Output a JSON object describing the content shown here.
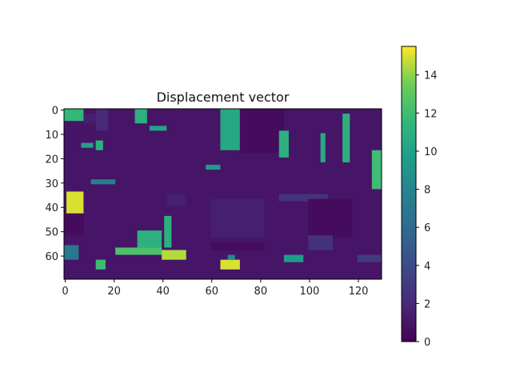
{
  "chart_data": {
    "type": "heatmap",
    "title": "Displacement vector",
    "xlabel": "",
    "ylabel": "",
    "colormap": "viridis",
    "grid": false,
    "x_range": [
      -0.5,
      129.5
    ],
    "y_range": [
      -0.5,
      69.5
    ],
    "x_ticks": [
      0,
      20,
      40,
      60,
      80,
      100,
      120
    ],
    "y_ticks": [
      0,
      10,
      20,
      30,
      40,
      50,
      60
    ],
    "colorbar": {
      "range": [
        0,
        15.5
      ],
      "ticks": [
        0,
        2,
        4,
        6,
        8,
        10,
        12,
        14
      ]
    },
    "background_value": 1,
    "regions": [
      {
        "x": [
          0,
          130
        ],
        "y": [
          0,
          70
        ],
        "value": 1
      },
      {
        "x": [
          0,
          8
        ],
        "y": [
          0,
          5
        ],
        "value": 11.5
      },
      {
        "x": [
          8,
          13
        ],
        "y": [
          2,
          6
        ],
        "value": 1.5
      },
      {
        "x": [
          13,
          18
        ],
        "y": [
          0,
          9
        ],
        "value": 2
      },
      {
        "x": [
          3,
          13
        ],
        "y": [
          10,
          14
        ],
        "value": 1
      },
      {
        "x": [
          7,
          12
        ],
        "y": [
          14,
          16
        ],
        "value": 10
      },
      {
        "x": [
          13,
          16
        ],
        "y": [
          13,
          17
        ],
        "value": 11
      },
      {
        "x": [
          29,
          34
        ],
        "y": [
          0,
          6
        ],
        "value": 11
      },
      {
        "x": [
          35,
          42
        ],
        "y": [
          7,
          9
        ],
        "value": 10
      },
      {
        "x": [
          64,
          72
        ],
        "y": [
          0,
          17
        ],
        "value": 10.5
      },
      {
        "x": [
          72,
          90
        ],
        "y": [
          0,
          18
        ],
        "value": 0.5
      },
      {
        "x": [
          88,
          92
        ],
        "y": [
          9,
          20
        ],
        "value": 11
      },
      {
        "x": [
          105,
          107
        ],
        "y": [
          10,
          22
        ],
        "value": 10.5
      },
      {
        "x": [
          114,
          117
        ],
        "y": [
          2,
          22
        ],
        "value": 11
      },
      {
        "x": [
          126,
          130
        ],
        "y": [
          17,
          33
        ],
        "value": 12
      },
      {
        "x": [
          58,
          64
        ],
        "y": [
          23,
          25
        ],
        "value": 9.5
      },
      {
        "x": [
          11,
          21
        ],
        "y": [
          29,
          31
        ],
        "value": 7.5
      },
      {
        "x": [
          1,
          8
        ],
        "y": [
          34,
          43
        ],
        "value": 15
      },
      {
        "x": [
          0,
          8
        ],
        "y": [
          43,
          52
        ],
        "value": 0.5
      },
      {
        "x": [
          88,
          108
        ],
        "y": [
          35,
          38
        ],
        "value": 2.5
      },
      {
        "x": [
          42,
          50
        ],
        "y": [
          35,
          40
        ],
        "value": 1.5
      },
      {
        "x": [
          60,
          82
        ],
        "y": [
          37,
          53
        ],
        "value": 1.5
      },
      {
        "x": [
          100,
          118
        ],
        "y": [
          37,
          53
        ],
        "value": 0.5
      },
      {
        "x": [
          30,
          40
        ],
        "y": [
          50,
          57
        ],
        "value": 11
      },
      {
        "x": [
          41,
          44
        ],
        "y": [
          44,
          57
        ],
        "value": 11
      },
      {
        "x": [
          21,
          40
        ],
        "y": [
          57,
          60
        ],
        "value": 12.5
      },
      {
        "x": [
          40,
          50
        ],
        "y": [
          58,
          62
        ],
        "value": 14.5
      },
      {
        "x": [
          0,
          6
        ],
        "y": [
          56,
          62
        ],
        "value": 7
      },
      {
        "x": [
          13,
          17
        ],
        "y": [
          62,
          66
        ],
        "value": 12
      },
      {
        "x": [
          64,
          72
        ],
        "y": [
          62,
          66
        ],
        "value": 15
      },
      {
        "x": [
          67,
          70
        ],
        "y": [
          60,
          62
        ],
        "value": 8
      },
      {
        "x": [
          100,
          110
        ],
        "y": [
          52,
          58
        ],
        "value": 2.5
      },
      {
        "x": [
          60,
          82
        ],
        "y": [
          55,
          58
        ],
        "value": 0.5
      },
      {
        "x": [
          90,
          98
        ],
        "y": [
          60,
          63
        ],
        "value": 9.5
      },
      {
        "x": [
          120,
          130
        ],
        "y": [
          60,
          63
        ],
        "value": 3
      }
    ]
  }
}
